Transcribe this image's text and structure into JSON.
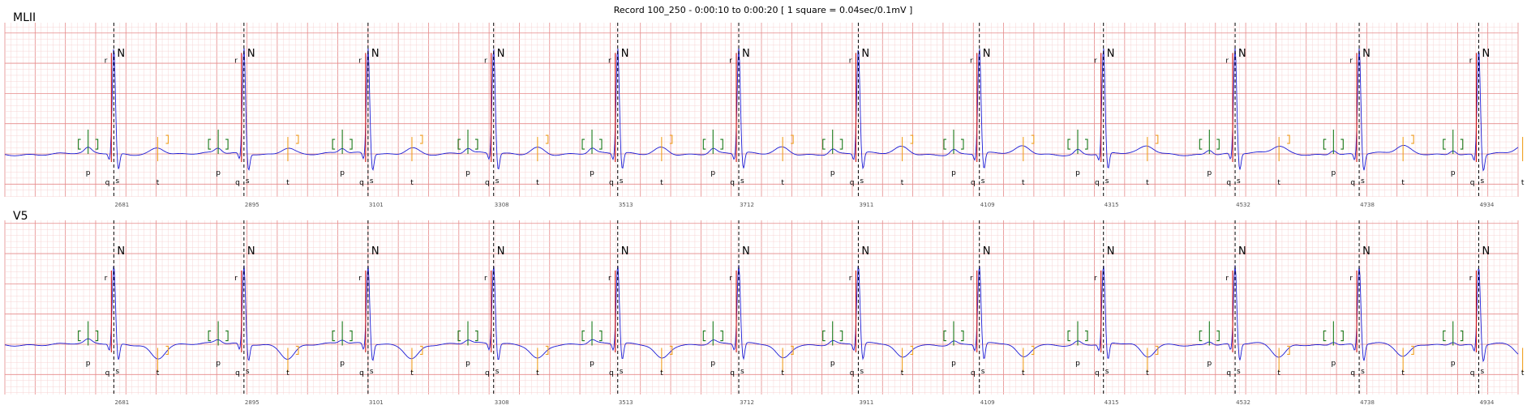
{
  "title": "Record 100_250 - 0:00:10 to 0:00:20  [ 1 square = 0.04sec/0.1mV ]",
  "chart_data": {
    "type": "line",
    "title": "Record 100_250 - 0:00:10 to 0:00:20  [ 1 square = 0.04sec/0.1mV ]",
    "xlabel": "",
    "ylabel": "",
    "grid": true,
    "time_range_s": [
      10,
      20
    ],
    "colors": {
      "minor_grid": "#f7d4d4",
      "major_grid": "#e58a8a",
      "signal": "#1c1cd6",
      "beat_marker": "#000000",
      "p_wave": "#1a7a1a",
      "t_wave": "#f0a020",
      "qrs": "#d01818"
    },
    "beat_samples": [
      "2681",
      "2895",
      "3101",
      "3308",
      "3513",
      "3712",
      "3911",
      "4109",
      "4315",
      "4532",
      "4738",
      "4934"
    ],
    "beat_times_s": [
      10.72,
      11.58,
      12.4,
      13.23,
      14.05,
      14.85,
      15.64,
      16.44,
      17.26,
      18.13,
      18.95,
      19.74
    ],
    "beat_labels": [
      "N",
      "N",
      "N",
      "N",
      "N",
      "N",
      "N",
      "N",
      "N",
      "N",
      "N",
      "N"
    ],
    "p_wave_label": "p",
    "q_wave_label": "q",
    "r_wave_label": "r",
    "s_wave_label": "s",
    "t_wave_label": "t",
    "series": [
      {
        "name": "MLII",
        "r_amplitude_mv": 1.75,
        "t_amplitude_mv": 0.12,
        "p_amplitude_mv": 0.08
      },
      {
        "name": "V5",
        "r_amplitude_mv": 1.3,
        "t_amplitude_mv": -0.22,
        "p_amplitude_mv": 0.06
      }
    ]
  }
}
